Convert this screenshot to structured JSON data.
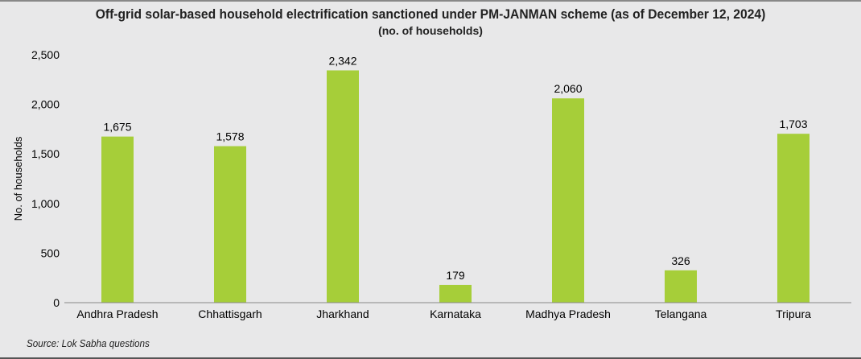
{
  "chart_data": {
    "type": "bar",
    "title": "Off-grid solar-based household electrification sanctioned under PM-JANMAN scheme (as of December 12, 2024)",
    "subtitle": "(no. of households)",
    "xlabel": "",
    "ylabel": "No. of households",
    "ylim": [
      0,
      2500
    ],
    "yticks": [
      0,
      500,
      1000,
      1500,
      2000,
      2500
    ],
    "ytick_labels": [
      "0",
      "500",
      "1,000",
      "1,500",
      "2,000",
      "2,500"
    ],
    "categories": [
      "Andhra Pradesh",
      "Chhattisgarh",
      "Jharkhand",
      "Karnataka",
      "Madhya Pradesh",
      "Telangana",
      "Tripura"
    ],
    "values": [
      1675,
      1578,
      2342,
      179,
      2060,
      326,
      1703
    ],
    "data_labels": [
      "1,675",
      "1,578",
      "2,342",
      "179",
      "2,060",
      "326",
      "1,703"
    ],
    "bar_color": "#a6ce39",
    "grid": false,
    "source": "Source: Lok Sabha questions"
  }
}
